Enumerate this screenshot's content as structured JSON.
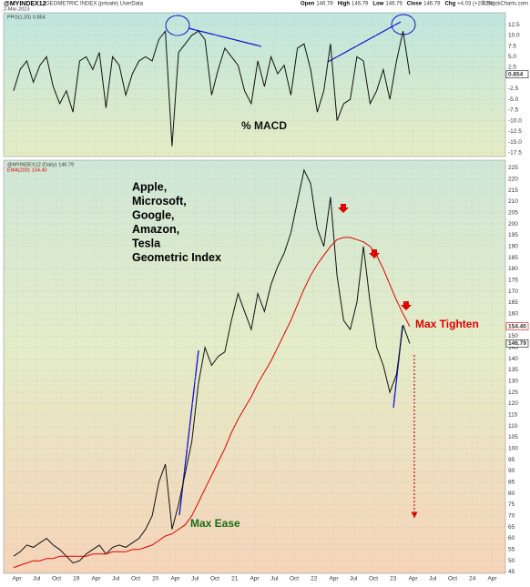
{
  "header": {
    "symbol": "@MYINDEX12",
    "description": "GEOMETRIC INDEX (private) UserData",
    "date": "2-Mar-2023",
    "copyright": "© StockCharts.com",
    "quote": [
      {
        "label": "Open",
        "value": "146.79"
      },
      {
        "label": "High",
        "value": "146.79"
      },
      {
        "label": "Low",
        "value": "146.79"
      },
      {
        "label": "Close",
        "value": "146.79"
      },
      {
        "label": "Chg",
        "value": "+4.03 (+2.82%)"
      }
    ]
  },
  "chart_data": [
    {
      "type": "line",
      "annotation": "% MACD",
      "x": [
        "2018-03",
        "2018-04",
        "2018-05",
        "2018-06",
        "2018-07",
        "2018-08",
        "2018-09",
        "2018-10",
        "2018-11",
        "2018-12",
        "2019-01",
        "2019-02",
        "2019-03",
        "2019-04",
        "2019-05",
        "2019-06",
        "2019-07",
        "2019-08",
        "2019-09",
        "2019-10",
        "2019-11",
        "2019-12",
        "2020-01",
        "2020-02",
        "2020-03",
        "2020-04",
        "2020-05",
        "2020-06",
        "2020-07",
        "2020-08",
        "2020-09",
        "2020-10",
        "2020-11",
        "2020-12",
        "2021-01",
        "2021-02",
        "2021-03",
        "2021-04",
        "2021-05",
        "2021-06",
        "2021-07",
        "2021-08",
        "2021-09",
        "2021-10",
        "2021-11",
        "2021-12",
        "2022-01",
        "2022-02",
        "2022-03",
        "2022-04",
        "2022-05",
        "2022-06",
        "2022-07",
        "2022-08",
        "2022-09",
        "2022-10",
        "2022-11",
        "2022-12",
        "2023-01",
        "2023-02",
        "2023-03"
      ],
      "xlim": [
        "2018-02",
        "2024-06"
      ],
      "series": [
        {
          "name": "PPO(1,20)",
          "color": "#111111",
          "values": [
            -3,
            2,
            4,
            -1,
            3,
            5,
            -2,
            -6,
            -3,
            -8,
            4,
            5,
            2,
            6,
            -7,
            5,
            3,
            -4,
            1,
            4,
            5,
            4,
            9,
            11,
            -16,
            6,
            8,
            10,
            11,
            9,
            -4,
            2,
            7,
            5,
            3,
            -3,
            -6,
            4,
            -2,
            5,
            1,
            3,
            -4,
            7,
            8,
            2,
            -8,
            -3,
            8,
            -10,
            -6,
            -5,
            5,
            4,
            -6,
            -3,
            2,
            -5,
            4,
            11,
            0.854
          ]
        }
      ],
      "ylim": [
        -18.4,
        15.3
      ],
      "yticks": [
        12.5,
        {
          "value": 10,
          "label": "10.0"
        },
        7.5,
        {
          "value": 5,
          "label": "5.0"
        },
        2.5,
        -2.5,
        {
          "value": -5,
          "label": "-5.0"
        },
        -7.5,
        {
          "value": -10,
          "label": "-10.0"
        },
        -12.5,
        {
          "value": -15,
          "label": "-15.0"
        },
        -17.5
      ],
      "grid": true
    },
    {
      "type": "line",
      "annotations": [
        {
          "lines": [
            "Apple,",
            "Microsoft,",
            "Google,",
            "Amazon,",
            "Tesla",
            "Geometric Index"
          ],
          "color": "#000000"
        },
        {
          "text": "Max Ease",
          "color": "#1a6b1a"
        },
        {
          "text": "Max Tighten",
          "color": "#e00000"
        }
      ],
      "x": [
        "2018-03",
        "2018-04",
        "2018-05",
        "2018-06",
        "2018-07",
        "2018-08",
        "2018-09",
        "2018-10",
        "2018-11",
        "2018-12",
        "2019-01",
        "2019-02",
        "2019-03",
        "2019-04",
        "2019-05",
        "2019-06",
        "2019-07",
        "2019-08",
        "2019-09",
        "2019-10",
        "2019-11",
        "2019-12",
        "2020-01",
        "2020-02",
        "2020-03",
        "2020-04",
        "2020-05",
        "2020-06",
        "2020-07",
        "2020-08",
        "2020-09",
        "2020-10",
        "2020-11",
        "2020-12",
        "2021-01",
        "2021-02",
        "2021-03",
        "2021-04",
        "2021-05",
        "2021-06",
        "2021-07",
        "2021-08",
        "2021-09",
        "2021-10",
        "2021-11",
        "2021-12",
        "2022-01",
        "2022-02",
        "2022-03",
        "2022-04",
        "2022-05",
        "2022-06",
        "2022-07",
        "2022-08",
        "2022-09",
        "2022-10",
        "2022-11",
        "2022-12",
        "2023-01",
        "2023-02",
        "2023-03"
      ],
      "xlim": [
        "2018-02",
        "2024-06"
      ],
      "xticks": [
        {
          "value": "2018-04",
          "label": "Apr"
        },
        {
          "value": "2018-07",
          "label": "Jul"
        },
        {
          "value": "2018-10",
          "label": "Oct"
        },
        {
          "value": "2019-01",
          "label": "19"
        },
        {
          "value": "2019-04",
          "label": "Apr"
        },
        {
          "value": "2019-07",
          "label": "Jul"
        },
        {
          "value": "2019-10",
          "label": "Oct"
        },
        {
          "value": "2020-01",
          "label": "20"
        },
        {
          "value": "2020-04",
          "label": "Apr"
        },
        {
          "value": "2020-07",
          "label": "Jul"
        },
        {
          "value": "2020-10",
          "label": "Oct"
        },
        {
          "value": "2021-01",
          "label": "21"
        },
        {
          "value": "2021-04",
          "label": "Apr"
        },
        {
          "value": "2021-07",
          "label": "Jul"
        },
        {
          "value": "2021-10",
          "label": "Oct"
        },
        {
          "value": "2022-01",
          "label": "22"
        },
        {
          "value": "2022-04",
          "label": "Apr"
        },
        {
          "value": "2022-07",
          "label": "Jul"
        },
        {
          "value": "2022-10",
          "label": "Oct"
        },
        {
          "value": "2023-01",
          "label": "23"
        },
        {
          "value": "2023-04",
          "label": "Apr"
        },
        {
          "value": "2023-07",
          "label": "Jul"
        },
        {
          "value": "2023-10",
          "label": "Oct"
        },
        {
          "value": "2024-01",
          "label": "24"
        },
        {
          "value": "2024-04",
          "label": "Apr"
        }
      ],
      "series": [
        {
          "name": "@MYINDEX12 (Daily)",
          "color": "#111111",
          "values": [
            52,
            54,
            57,
            56,
            58,
            60,
            57,
            55,
            52,
            49,
            50,
            53,
            55,
            57,
            53,
            56,
            57,
            56,
            58,
            60,
            64,
            70,
            85,
            93,
            64,
            75,
            89,
            103,
            129,
            145,
            137,
            141,
            143,
            157,
            169,
            161,
            153,
            169,
            161,
            173,
            181,
            187,
            196,
            210,
            224,
            218,
            198,
            190,
            212,
            177,
            157,
            153,
            165,
            190,
            165,
            145,
            137,
            125,
            133,
            155,
            146.79
          ]
        },
        {
          "name": "EMA(200)",
          "color": "#e00000",
          "last_label": "154.40",
          "values": [
            47,
            48,
            49,
            50,
            50,
            51,
            51,
            52,
            52,
            52,
            52,
            52,
            53,
            53,
            53,
            54,
            54,
            54,
            55,
            55,
            56,
            57,
            59,
            61,
            62,
            64,
            66,
            70,
            76,
            82,
            88,
            94,
            100,
            107,
            113,
            118,
            123,
            129,
            134,
            139,
            145,
            151,
            157,
            164,
            171,
            177,
            182,
            186,
            190,
            193,
            194,
            194,
            193,
            192,
            190,
            186,
            180,
            173,
            166,
            160,
            154.4
          ]
        }
      ],
      "ylim": [
        44.4,
        228.4
      ],
      "yticks": [
        225,
        220,
        215,
        210,
        205,
        200,
        195,
        190,
        185,
        180,
        175,
        170,
        165,
        160,
        155,
        150,
        145,
        140,
        135,
        130,
        125,
        120,
        115,
        110,
        105,
        100,
        95,
        90,
        85,
        80,
        75,
        70,
        65,
        60,
        55,
        50,
        45
      ],
      "grid": true
    }
  ]
}
